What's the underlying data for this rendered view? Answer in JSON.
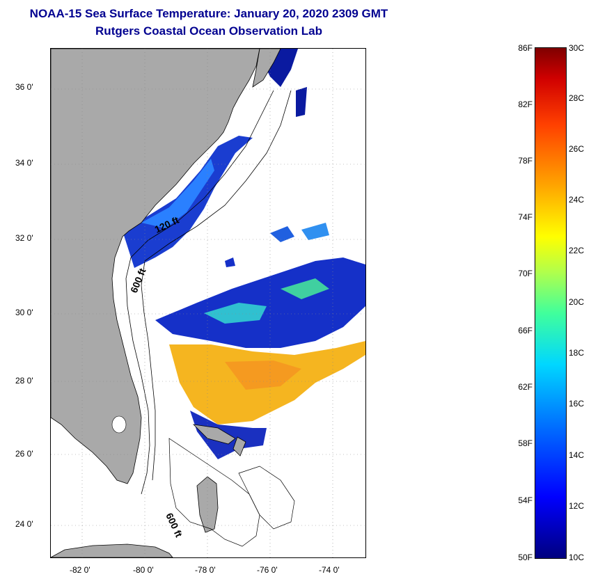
{
  "title": {
    "line1": "NOAA-15 Sea Surface Temperature:  January 20, 2020 2309 GMT",
    "line2": "Rutgers Coastal Ocean Observation Lab"
  },
  "map": {
    "lat_labels": [
      "36 0'",
      "34 0'",
      "32 0'",
      "30 0'",
      "28 0'",
      "26 0'",
      "24 0'"
    ],
    "lon_labels": [
      "-82 0'",
      "-80 0'",
      "-78 0'",
      "-76 0'",
      "-74 0'"
    ],
    "contour_labels": [
      "120 ft",
      "600 ft",
      "600 ft"
    ],
    "lat_range": [
      23,
      37
    ],
    "lon_range": [
      -83,
      -73
    ]
  },
  "colorbar": {
    "f_labels": [
      "86F",
      "82F",
      "78F",
      "74F",
      "70F",
      "66F",
      "62F",
      "58F",
      "54F",
      "50F"
    ],
    "c_labels": [
      "30C",
      "28C",
      "26C",
      "24C",
      "22C",
      "20C",
      "18C",
      "16C",
      "14C",
      "12C",
      "10C"
    ]
  },
  "colors": {
    "title": "#000090",
    "land": "#a9a9a9",
    "warm_sst": "#f5b520",
    "cold_sst": "#1020c0"
  }
}
